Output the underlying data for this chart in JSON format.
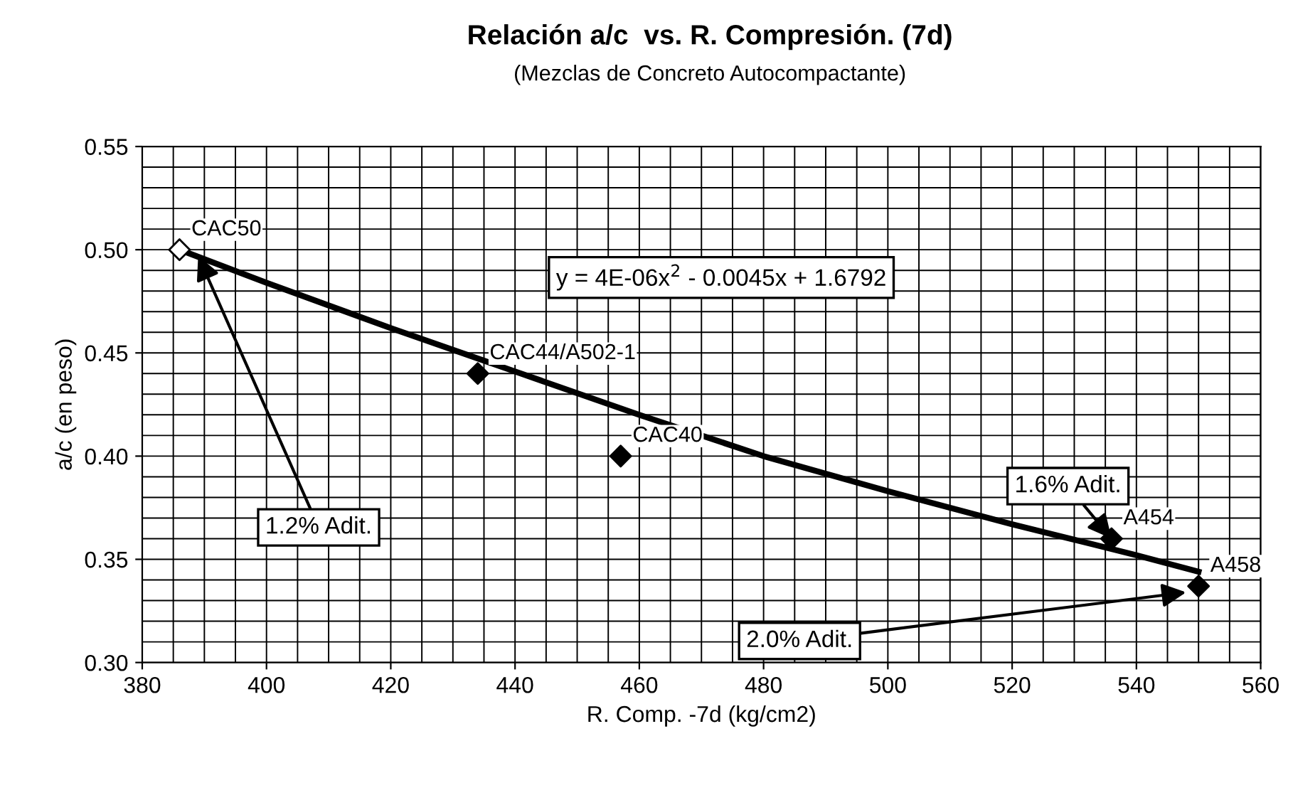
{
  "chart_data": {
    "type": "scatter",
    "title": "Relación a/c  vs. R. Compresión. (7d)",
    "subtitle": "(Mezclas de Concreto Autocompactante)",
    "xlabel": "R. Comp. -7d (kg/cm2)",
    "ylabel": "a/c (en peso)",
    "xlim": [
      380,
      560
    ],
    "xticks": [
      380,
      400,
      420,
      440,
      460,
      480,
      500,
      520,
      540,
      560
    ],
    "ylim": [
      0.3,
      0.55
    ],
    "yticks": [
      {
        "value": 0.3,
        "label": "0.30"
      },
      0.35,
      {
        "value": 0.4,
        "label": "0.40"
      },
      0.45,
      {
        "value": 0.5,
        "label": "0.50"
      },
      0.55
    ],
    "grid": true,
    "marker": "diamond",
    "series": [
      {
        "type": "line",
        "marker": "none",
        "color": "#000000",
        "x": [
          386,
          400,
          420,
          440,
          460,
          480,
          500,
          520,
          540,
          550
        ],
        "values": [
          0.5,
          0.484,
          0.462,
          0.441,
          0.42,
          0.4,
          0.383,
          0.367,
          0.352,
          0.344
        ]
      },
      {
        "color": "#ffffff",
        "x": [
          386
        ],
        "values": [
          0.5
        ],
        "value_labels": [
          "CAC50"
        ]
      },
      {
        "color": "#000000",
        "x": [
          434,
          457,
          536,
          550
        ],
        "values": [
          0.44,
          0.4,
          0.36,
          0.337
        ],
        "value_labels": [
          "CAC44/A502-1",
          "CAC40",
          "A454",
          "A458"
        ]
      }
    ],
    "annotations": [
      "y = 4E-06x$^{2}$ - 0.0045x + 1.6792",
      {
        "text": "1.2% Adit.",
        "x": 389,
        "y": 0.497
      },
      {
        "text": "1.6% Adit.",
        "x": 536,
        "y": 0.36
      },
      {
        "text": "2.0% Adit.",
        "x": 548,
        "y": 0.334
      }
    ]
  }
}
